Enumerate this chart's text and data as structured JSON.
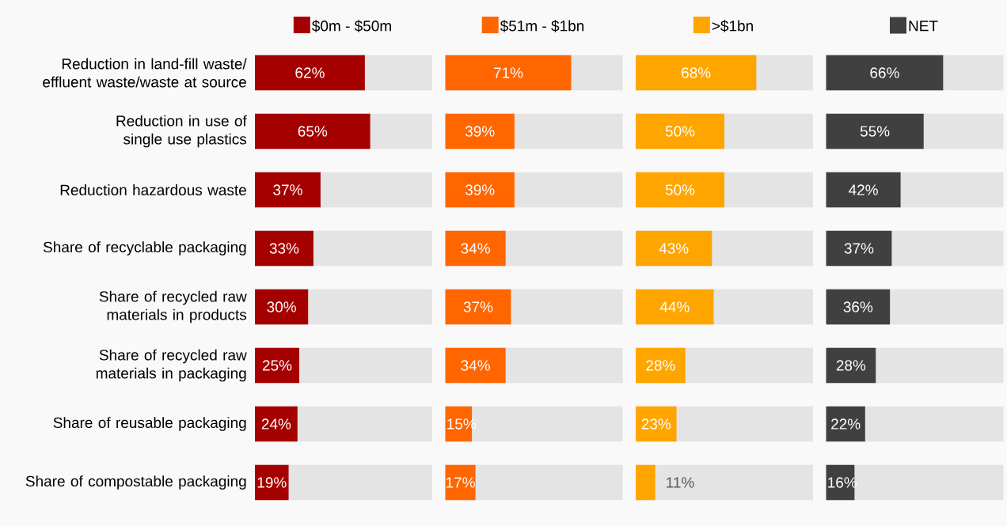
{
  "chart_data": [
    {
      "type": "bar",
      "orientation": "horizontal",
      "legend": "top",
      "tick_labels": "y",
      "xlim": [
        0,
        100
      ],
      "categories": [
        "Reduction in land-fill waste/ effluent waste/waste at source",
        "Reduction in use of single use plastics",
        "Reduction hazardous waste",
        "Share of recyclable packaging",
        "Share of recycled raw materials in products",
        "Share of recycled raw materials in packaging",
        "Share of reusable packaging",
        "Share of compostable packaging"
      ],
      "series": [
        {
          "name": "$0m - $50m",
          "color": "#a50000",
          "values": [
            62,
            65,
            37,
            33,
            30,
            25,
            24,
            19
          ],
          "value_labels": [
            "62%",
            "65%",
            "37%",
            "33%",
            "30%",
            "25%",
            "24%",
            "19%"
          ]
        }
      ]
    },
    {
      "type": "bar",
      "orientation": "horizontal",
      "legend": "top",
      "tick_labels": false,
      "xlim": [
        0,
        100
      ],
      "series": [
        {
          "name": "$51m - $1bn",
          "color": "#ff6600",
          "values": [
            71,
            39,
            39,
            34,
            37,
            34,
            15,
            17
          ],
          "value_labels": [
            "71%",
            "39%",
            "39%",
            "34%",
            "37%",
            "34%",
            "15%",
            "17%"
          ]
        }
      ]
    },
    {
      "type": "bar",
      "orientation": "horizontal",
      "legend": "top",
      "tick_labels": false,
      "xlim": [
        0,
        100
      ],
      "series": [
        {
          "name": ">$1bn",
          "color": "#ffa500",
          "values": [
            68,
            50,
            50,
            43,
            44,
            28,
            23,
            11
          ],
          "value_labels": [
            "68%",
            "50%",
            "50%",
            "43%",
            "44%",
            "28%",
            "23%",
            "11%"
          ]
        }
      ]
    },
    {
      "type": "bar",
      "orientation": "horizontal",
      "legend": "top",
      "tick_labels": false,
      "xlim": [
        0,
        100
      ],
      "series": [
        {
          "name": "NET",
          "color": "#404040",
          "values": [
            66,
            55,
            42,
            37,
            36,
            28,
            22,
            16
          ],
          "value_labels": [
            "66%",
            "55%",
            "42%",
            "37%",
            "36%",
            "28%",
            "22%",
            "16%"
          ]
        }
      ]
    }
  ]
}
